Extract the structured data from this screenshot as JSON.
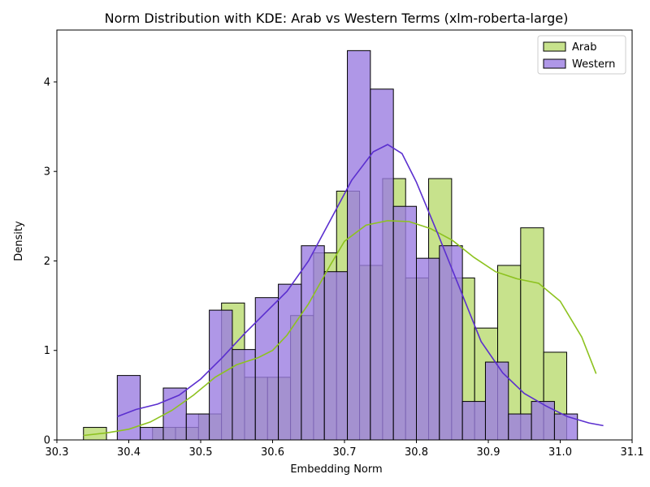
{
  "chart_data": {
    "type": "histogram",
    "title": "Norm Distribution with KDE: Arab vs Western Terms (xlm-roberta-large)",
    "xlabel": "Embedding Norm",
    "ylabel": "Density",
    "xlim": [
      30.3,
      31.1
    ],
    "ylim": [
      0,
      4.58
    ],
    "xticks": [
      "30.3",
      "30.4",
      "30.5",
      "30.6",
      "30.7",
      "30.8",
      "30.9",
      "31.0",
      "31.1"
    ],
    "yticks": [
      "0",
      "1",
      "2",
      "3",
      "4"
    ],
    "legend_position": "top-right",
    "series": [
      {
        "name": "Arab",
        "fill": "#c7e28c",
        "line": "#8dc21f",
        "bins": [
          {
            "x0": 30.337,
            "x1": 30.369,
            "density": 0.14
          },
          {
            "x0": 30.433,
            "x1": 30.465,
            "density": 0.14
          },
          {
            "x0": 30.465,
            "x1": 30.497,
            "density": 0.14
          },
          {
            "x0": 30.497,
            "x1": 30.529,
            "density": 0.29
          },
          {
            "x0": 30.529,
            "x1": 30.561,
            "density": 1.53
          },
          {
            "x0": 30.561,
            "x1": 30.593,
            "density": 0.7
          },
          {
            "x0": 30.593,
            "x1": 30.625,
            "density": 0.7
          },
          {
            "x0": 30.625,
            "x1": 30.657,
            "density": 1.39
          },
          {
            "x0": 30.657,
            "x1": 30.689,
            "density": 2.09
          },
          {
            "x0": 30.689,
            "x1": 30.721,
            "density": 2.78
          },
          {
            "x0": 30.721,
            "x1": 30.753,
            "density": 1.95
          },
          {
            "x0": 30.753,
            "x1": 30.785,
            "density": 2.92
          },
          {
            "x0": 30.785,
            "x1": 30.817,
            "density": 1.81
          },
          {
            "x0": 30.817,
            "x1": 30.849,
            "density": 2.92
          },
          {
            "x0": 30.849,
            "x1": 30.881,
            "density": 1.81
          },
          {
            "x0": 30.881,
            "x1": 30.913,
            "density": 1.25
          },
          {
            "x0": 30.913,
            "x1": 30.945,
            "density": 1.95
          },
          {
            "x0": 30.945,
            "x1": 30.977,
            "density": 2.37
          },
          {
            "x0": 30.977,
            "x1": 31.009,
            "density": 0.98
          }
        ],
        "kde": [
          [
            30.337,
            0.05
          ],
          [
            30.37,
            0.08
          ],
          [
            30.4,
            0.12
          ],
          [
            30.43,
            0.2
          ],
          [
            30.46,
            0.33
          ],
          [
            30.49,
            0.5
          ],
          [
            30.52,
            0.7
          ],
          [
            30.55,
            0.84
          ],
          [
            30.58,
            0.92
          ],
          [
            30.6,
            1.0
          ],
          [
            30.62,
            1.17
          ],
          [
            30.65,
            1.52
          ],
          [
            30.68,
            1.95
          ],
          [
            30.7,
            2.22
          ],
          [
            30.73,
            2.4
          ],
          [
            30.76,
            2.45
          ],
          [
            30.79,
            2.44
          ],
          [
            30.82,
            2.36
          ],
          [
            30.85,
            2.23
          ],
          [
            30.88,
            2.04
          ],
          [
            30.91,
            1.88
          ],
          [
            30.94,
            1.8
          ],
          [
            30.97,
            1.75
          ],
          [
            31.0,
            1.55
          ],
          [
            31.03,
            1.15
          ],
          [
            31.05,
            0.74
          ]
        ]
      },
      {
        "name": "Western",
        "fill": "#9b7de1",
        "line": "#5b2fcf",
        "bins": [
          {
            "x0": 30.384,
            "x1": 30.416,
            "density": 0.72
          },
          {
            "x0": 30.416,
            "x1": 30.448,
            "density": 0.14
          },
          {
            "x0": 30.448,
            "x1": 30.48,
            "density": 0.58
          },
          {
            "x0": 30.48,
            "x1": 30.512,
            "density": 0.29
          },
          {
            "x0": 30.512,
            "x1": 30.544,
            "density": 1.45
          },
          {
            "x0": 30.544,
            "x1": 30.576,
            "density": 1.01
          },
          {
            "x0": 30.576,
            "x1": 30.608,
            "density": 1.59
          },
          {
            "x0": 30.608,
            "x1": 30.64,
            "density": 1.74
          },
          {
            "x0": 30.64,
            "x1": 30.672,
            "density": 2.17
          },
          {
            "x0": 30.672,
            "x1": 30.704,
            "density": 1.88
          },
          {
            "x0": 30.704,
            "x1": 30.736,
            "density": 4.35
          },
          {
            "x0": 30.736,
            "x1": 30.768,
            "density": 3.92
          },
          {
            "x0": 30.768,
            "x1": 30.8,
            "density": 2.61
          },
          {
            "x0": 30.8,
            "x1": 30.832,
            "density": 2.03
          },
          {
            "x0": 30.832,
            "x1": 30.864,
            "density": 2.17
          },
          {
            "x0": 30.864,
            "x1": 30.896,
            "density": 0.43
          },
          {
            "x0": 30.896,
            "x1": 30.928,
            "density": 0.87
          },
          {
            "x0": 30.928,
            "x1": 30.96,
            "density": 0.29
          },
          {
            "x0": 30.96,
            "x1": 30.992,
            "density": 0.43
          },
          {
            "x0": 30.992,
            "x1": 31.024,
            "density": 0.29
          }
        ],
        "kde": [
          [
            30.384,
            0.26
          ],
          [
            30.41,
            0.34
          ],
          [
            30.44,
            0.4
          ],
          [
            30.47,
            0.5
          ],
          [
            30.5,
            0.68
          ],
          [
            30.53,
            0.92
          ],
          [
            30.56,
            1.18
          ],
          [
            30.59,
            1.42
          ],
          [
            30.62,
            1.66
          ],
          [
            30.65,
            2.0
          ],
          [
            30.68,
            2.45
          ],
          [
            30.71,
            2.9
          ],
          [
            30.74,
            3.22
          ],
          [
            30.76,
            3.3
          ],
          [
            30.78,
            3.2
          ],
          [
            30.8,
            2.88
          ],
          [
            30.83,
            2.3
          ],
          [
            30.86,
            1.7
          ],
          [
            30.89,
            1.1
          ],
          [
            30.92,
            0.75
          ],
          [
            30.95,
            0.52
          ],
          [
            30.98,
            0.38
          ],
          [
            31.01,
            0.26
          ],
          [
            31.04,
            0.19
          ],
          [
            31.06,
            0.16
          ]
        ]
      }
    ]
  }
}
